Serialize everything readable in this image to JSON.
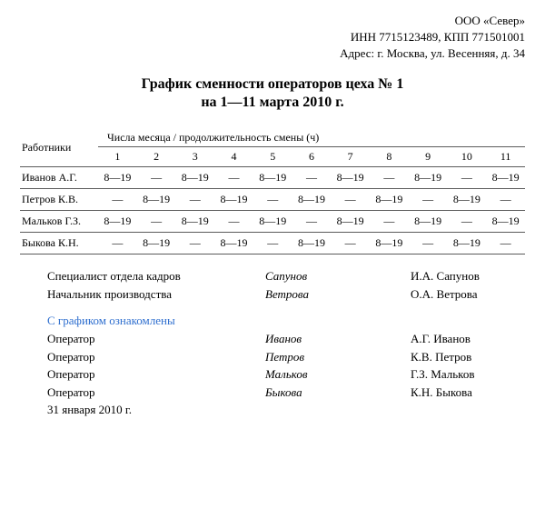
{
  "header": {
    "company": "ООО «Север»",
    "inn_kpp": "ИНН 7715123489, КПП 771501001",
    "address": "Адрес: г. Москва, ул. Весенняя, д. 34"
  },
  "title": {
    "line1": "График сменности операторов цеха № 1",
    "line2": "на 1—11 марта 2010 г."
  },
  "table": {
    "workers_label": "Работники",
    "days_label": "Числа месяца / продолжительность смены (ч)",
    "day_nums": [
      "1",
      "2",
      "3",
      "4",
      "5",
      "6",
      "7",
      "8",
      "9",
      "10",
      "11"
    ],
    "rows": [
      {
        "name": "Иванов А.Г.",
        "cells": [
          "8—19",
          "—",
          "8—19",
          "—",
          "8—19",
          "—",
          "8—19",
          "—",
          "8—19",
          "—",
          "8—19"
        ]
      },
      {
        "name": "Петров К.В.",
        "cells": [
          "—",
          "8—19",
          "—",
          "8—19",
          "—",
          "8—19",
          "—",
          "8—19",
          "—",
          "8—19",
          "—"
        ]
      },
      {
        "name": "Мальков Г.З.",
        "cells": [
          "8—19",
          "—",
          "8—19",
          "—",
          "8—19",
          "—",
          "8—19",
          "—",
          "8—19",
          "—",
          "8—19"
        ]
      },
      {
        "name": "Быкова К.Н.",
        "cells": [
          "—",
          "8—19",
          "—",
          "8—19",
          "—",
          "8—19",
          "—",
          "8—19",
          "—",
          "8—19",
          "—"
        ]
      }
    ]
  },
  "signers": [
    {
      "role": "Специалист отдела кадров",
      "sign": "Сапунов",
      "name": "И.А. Сапунов"
    },
    {
      "role": "Начальник производства",
      "sign": "Ветрова",
      "name": "О.А. Ветрова"
    }
  ],
  "ack": {
    "title": "С графиком ознакомлены",
    "rows": [
      {
        "role": "Оператор",
        "sign": "Иванов",
        "name": "А.Г. Иванов"
      },
      {
        "role": "Оператор",
        "sign": "Петров",
        "name": "К.В. Петров"
      },
      {
        "role": "Оператор",
        "sign": "Мальков",
        "name": "Г.З. Мальков"
      },
      {
        "role": "Оператор",
        "sign": "Быкова",
        "name": "К.Н. Быкова"
      }
    ]
  },
  "date": "31 января 2010 г."
}
